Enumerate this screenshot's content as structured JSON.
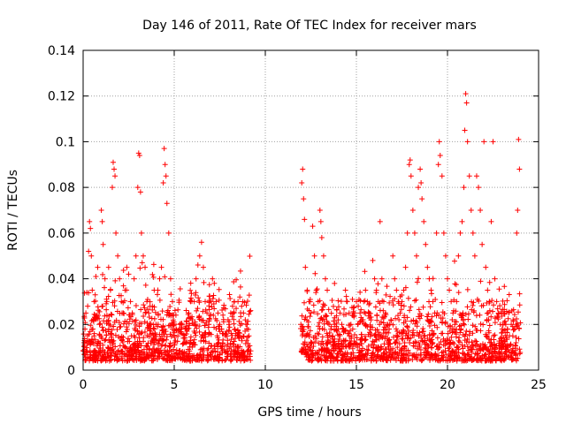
{
  "chart_data": {
    "type": "scatter",
    "title": "Day 146 of 2011, Rate Of TEC Index for receiver mars",
    "xlabel": "GPS time / hours",
    "ylabel": "ROTI / TECUs",
    "xlim": [
      0,
      25
    ],
    "ylim": [
      0,
      0.14
    ],
    "xticks": [
      0,
      5,
      10,
      15,
      20,
      25
    ],
    "xtick_labels": [
      "0",
      "5",
      "10",
      "15",
      "20",
      "25"
    ],
    "yticks": [
      0,
      0.02,
      0.04,
      0.06,
      0.08,
      0.1,
      0.12,
      0.14
    ],
    "ytick_labels": [
      "0",
      "0.02",
      "0.04",
      "0.06",
      "0.08",
      "0.1",
      "0.12",
      "0.14"
    ],
    "grid": true,
    "marker": "plus",
    "color": "#ff0000",
    "series": [
      {
        "name": "ROTI",
        "data_gap_hours": [
          9.2,
          11.9
        ],
        "points": [
          [
            0.05,
            0.012
          ],
          [
            0.1,
            0.018
          ],
          [
            0.15,
            0.025
          ],
          [
            0.2,
            0.034
          ],
          [
            0.25,
            0.028
          ],
          [
            0.3,
            0.052
          ],
          [
            0.35,
            0.065
          ],
          [
            0.4,
            0.062
          ],
          [
            0.45,
            0.05
          ],
          [
            0.5,
            0.035
          ],
          [
            0.55,
            0.022
          ],
          [
            0.6,
            0.03
          ],
          [
            0.7,
            0.041
          ],
          [
            0.8,
            0.045
          ],
          [
            0.9,
            0.02
          ],
          [
            1.0,
            0.07
          ],
          [
            1.05,
            0.065
          ],
          [
            1.1,
            0.055
          ],
          [
            1.2,
            0.04
          ],
          [
            1.3,
            0.03
          ],
          [
            1.4,
            0.045
          ],
          [
            1.5,
            0.035
          ],
          [
            1.6,
            0.08
          ],
          [
            1.65,
            0.091
          ],
          [
            1.7,
            0.088
          ],
          [
            1.75,
            0.085
          ],
          [
            1.8,
            0.06
          ],
          [
            1.9,
            0.05
          ],
          [
            2.0,
            0.04
          ],
          [
            2.1,
            0.03
          ],
          [
            2.2,
            0.025
          ],
          [
            2.3,
            0.035
          ],
          [
            2.4,
            0.045
          ],
          [
            2.5,
            0.042
          ],
          [
            2.6,
            0.03
          ],
          [
            2.7,
            0.025
          ],
          [
            2.8,
            0.04
          ],
          [
            2.9,
            0.05
          ],
          [
            3.0,
            0.08
          ],
          [
            3.05,
            0.095
          ],
          [
            3.1,
            0.094
          ],
          [
            3.15,
            0.078
          ],
          [
            3.2,
            0.06
          ],
          [
            3.3,
            0.05
          ],
          [
            3.4,
            0.045
          ],
          [
            3.5,
            0.03
          ],
          [
            3.6,
            0.025
          ],
          [
            3.7,
            0.02
          ],
          [
            3.8,
            0.028
          ],
          [
            3.9,
            0.035
          ],
          [
            4.0,
            0.02
          ],
          [
            4.1,
            0.035
          ],
          [
            4.2,
            0.04
          ],
          [
            4.3,
            0.045
          ],
          [
            4.4,
            0.082
          ],
          [
            4.45,
            0.097
          ],
          [
            4.5,
            0.09
          ],
          [
            4.55,
            0.085
          ],
          [
            4.6,
            0.073
          ],
          [
            4.7,
            0.06
          ],
          [
            4.8,
            0.04
          ],
          [
            4.9,
            0.03
          ],
          [
            5.0,
            0.02
          ],
          [
            5.1,
            0.018
          ],
          [
            5.2,
            0.015
          ],
          [
            5.3,
            0.02
          ],
          [
            5.4,
            0.016
          ],
          [
            5.5,
            0.014
          ],
          [
            5.6,
            0.018
          ],
          [
            5.7,
            0.017
          ],
          [
            5.8,
            0.025
          ],
          [
            5.9,
            0.03
          ],
          [
            6.0,
            0.022
          ],
          [
            6.1,
            0.03
          ],
          [
            6.2,
            0.04
          ],
          [
            6.3,
            0.046
          ],
          [
            6.4,
            0.05
          ],
          [
            6.5,
            0.056
          ],
          [
            6.6,
            0.045
          ],
          [
            6.7,
            0.03
          ],
          [
            6.8,
            0.025
          ],
          [
            6.9,
            0.02
          ],
          [
            7.0,
            0.03
          ],
          [
            7.1,
            0.04
          ],
          [
            7.2,
            0.038
          ],
          [
            7.3,
            0.03
          ],
          [
            7.4,
            0.025
          ],
          [
            7.5,
            0.02
          ],
          [
            7.6,
            0.018
          ],
          [
            7.7,
            0.016
          ],
          [
            7.8,
            0.015
          ],
          [
            7.9,
            0.017
          ],
          [
            8.0,
            0.02
          ],
          [
            8.1,
            0.025
          ],
          [
            8.2,
            0.028
          ],
          [
            8.3,
            0.03
          ],
          [
            8.4,
            0.027
          ],
          [
            8.5,
            0.03
          ],
          [
            8.6,
            0.032
          ],
          [
            8.7,
            0.028
          ],
          [
            8.8,
            0.025
          ],
          [
            8.9,
            0.022
          ],
          [
            9.0,
            0.02
          ],
          [
            9.1,
            0.015
          ],
          [
            12.0,
            0.082
          ],
          [
            12.05,
            0.088
          ],
          [
            12.1,
            0.075
          ],
          [
            12.15,
            0.066
          ],
          [
            12.2,
            0.045
          ],
          [
            12.3,
            0.035
          ],
          [
            12.4,
            0.03
          ],
          [
            12.5,
            0.025
          ],
          [
            12.6,
            0.063
          ],
          [
            12.7,
            0.05
          ],
          [
            12.8,
            0.035
          ],
          [
            12.9,
            0.03
          ],
          [
            13.0,
            0.07
          ],
          [
            13.05,
            0.065
          ],
          [
            13.1,
            0.058
          ],
          [
            13.2,
            0.05
          ],
          [
            13.3,
            0.04
          ],
          [
            13.4,
            0.035
          ],
          [
            13.5,
            0.02
          ],
          [
            13.6,
            0.018
          ],
          [
            13.7,
            0.015
          ],
          [
            13.8,
            0.02
          ],
          [
            13.9,
            0.018
          ],
          [
            14.0,
            0.022
          ],
          [
            14.1,
            0.025
          ],
          [
            14.2,
            0.02
          ],
          [
            14.3,
            0.018
          ],
          [
            14.4,
            0.035
          ],
          [
            14.5,
            0.03
          ],
          [
            14.6,
            0.025
          ],
          [
            14.7,
            0.02
          ],
          [
            14.8,
            0.018
          ],
          [
            14.9,
            0.025
          ],
          [
            15.0,
            0.03
          ],
          [
            15.1,
            0.028
          ],
          [
            15.2,
            0.025
          ],
          [
            15.3,
            0.022
          ],
          [
            15.4,
            0.03
          ],
          [
            15.5,
            0.035
          ],
          [
            15.6,
            0.03
          ],
          [
            15.7,
            0.025
          ],
          [
            15.8,
            0.022
          ],
          [
            15.9,
            0.048
          ],
          [
            16.0,
            0.04
          ],
          [
            16.1,
            0.035
          ],
          [
            16.2,
            0.03
          ],
          [
            16.3,
            0.065
          ],
          [
            16.4,
            0.04
          ],
          [
            16.5,
            0.03
          ],
          [
            16.6,
            0.025
          ],
          [
            16.7,
            0.02
          ],
          [
            16.8,
            0.018
          ],
          [
            16.9,
            0.022
          ],
          [
            17.0,
            0.05
          ],
          [
            17.1,
            0.04
          ],
          [
            17.2,
            0.035
          ],
          [
            17.3,
            0.03
          ],
          [
            17.4,
            0.025
          ],
          [
            17.5,
            0.03
          ],
          [
            17.6,
            0.035
          ],
          [
            17.7,
            0.045
          ],
          [
            17.8,
            0.06
          ],
          [
            17.9,
            0.09
          ],
          [
            17.95,
            0.092
          ],
          [
            18.0,
            0.085
          ],
          [
            18.1,
            0.07
          ],
          [
            18.2,
            0.06
          ],
          [
            18.3,
            0.05
          ],
          [
            18.4,
            0.08
          ],
          [
            18.5,
            0.088
          ],
          [
            18.55,
            0.082
          ],
          [
            18.6,
            0.075
          ],
          [
            18.7,
            0.065
          ],
          [
            18.8,
            0.055
          ],
          [
            18.9,
            0.045
          ],
          [
            19.0,
            0.04
          ],
          [
            19.1,
            0.035
          ],
          [
            19.2,
            0.03
          ],
          [
            19.3,
            0.025
          ],
          [
            19.4,
            0.06
          ],
          [
            19.5,
            0.09
          ],
          [
            19.55,
            0.1
          ],
          [
            19.6,
            0.094
          ],
          [
            19.7,
            0.085
          ],
          [
            19.8,
            0.06
          ],
          [
            19.9,
            0.05
          ],
          [
            20.0,
            0.04
          ],
          [
            20.1,
            0.035
          ],
          [
            20.2,
            0.03
          ],
          [
            20.3,
            0.025
          ],
          [
            20.4,
            0.02
          ],
          [
            20.5,
            0.03
          ],
          [
            20.6,
            0.05
          ],
          [
            20.7,
            0.06
          ],
          [
            20.8,
            0.065
          ],
          [
            20.9,
            0.08
          ],
          [
            20.95,
            0.105
          ],
          [
            21.0,
            0.121
          ],
          [
            21.05,
            0.117
          ],
          [
            21.1,
            0.1
          ],
          [
            21.2,
            0.085
          ],
          [
            21.3,
            0.07
          ],
          [
            21.4,
            0.06
          ],
          [
            21.5,
            0.05
          ],
          [
            21.6,
            0.085
          ],
          [
            21.7,
            0.08
          ],
          [
            21.8,
            0.07
          ],
          [
            21.9,
            0.055
          ],
          [
            22.0,
            0.1
          ],
          [
            22.1,
            0.045
          ],
          [
            22.2,
            0.035
          ],
          [
            22.3,
            0.03
          ],
          [
            22.4,
            0.065
          ],
          [
            22.5,
            0.1
          ],
          [
            22.6,
            0.04
          ],
          [
            22.7,
            0.03
          ],
          [
            22.8,
            0.025
          ],
          [
            22.9,
            0.02
          ],
          [
            23.0,
            0.018
          ],
          [
            23.1,
            0.025
          ],
          [
            23.2,
            0.02
          ],
          [
            23.3,
            0.018
          ],
          [
            23.4,
            0.015
          ],
          [
            23.5,
            0.02
          ],
          [
            23.6,
            0.022
          ],
          [
            23.7,
            0.018
          ],
          [
            23.8,
            0.06
          ],
          [
            23.85,
            0.07
          ],
          [
            23.9,
            0.101
          ],
          [
            23.95,
            0.088
          ]
        ]
      }
    ]
  }
}
